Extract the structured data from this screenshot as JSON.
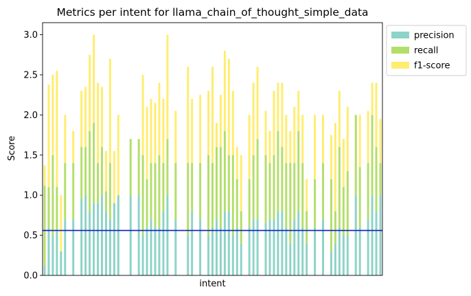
{
  "chart_data": {
    "type": "bar",
    "stacked": true,
    "title": "Metrics per intent for llama_chain_of_thought_simple_data",
    "xlabel": "intent",
    "ylabel": "Score",
    "ylim": [
      0,
      3.15
    ],
    "yticks": [
      0.0,
      0.5,
      1.0,
      1.5,
      2.0,
      2.5,
      3.0
    ],
    "ytick_labels": [
      "0.0",
      "0.5",
      "1.0",
      "1.5",
      "2.0",
      "2.5",
      "3.0"
    ],
    "legend_position": "outside-upper-right",
    "reference_line": {
      "value": 0.56,
      "color": "#0b1fbf"
    },
    "series": [
      {
        "name": "precision",
        "color": "#8dd3c7",
        "values": [
          0.12,
          0.6,
          0.5,
          0.55,
          0.3,
          0.7,
          0.0,
          0.7,
          0.0,
          0.95,
          1.0,
          0.8,
          0.9,
          0.9,
          1.0,
          0.8,
          0.7,
          0.9,
          1.0,
          0.0,
          0.0,
          1.0,
          0.0,
          1.0,
          0.5,
          0.6,
          0.7,
          0.6,
          0.6,
          0.8,
          1.0,
          0.0,
          0.7,
          0.0,
          0.0,
          0.5,
          0.8,
          0.0,
          0.7,
          0.0,
          0.5,
          0.6,
          0.7,
          0.6,
          0.8,
          0.8,
          0.5,
          0.6,
          0.4,
          0.0,
          0.6,
          0.7,
          0.7,
          0.0,
          0.65,
          0.7,
          0.7,
          0.8,
          0.8,
          0.6,
          0.4,
          0.7,
          0.8,
          0.6,
          0.4,
          0.0,
          0.6,
          0.0,
          0.7,
          0.0,
          0.3,
          0.4,
          0.6,
          0.5,
          0.5,
          0.0,
          1.0,
          0.6,
          0.0,
          0.7,
          1.0,
          0.8,
          1.0
        ]
      },
      {
        "name": "recall",
        "color": "#b3de69",
        "values": [
          1.0,
          0.5,
          1.0,
          0.55,
          0.0,
          0.7,
          0.0,
          0.7,
          0.0,
          0.65,
          0.6,
          1.0,
          1.0,
          0.5,
          0.6,
          0.25,
          0.7,
          0.0,
          0.0,
          0.0,
          0.0,
          0.7,
          0.0,
          0.7,
          1.0,
          0.6,
          0.7,
          0.8,
          0.9,
          0.6,
          0.7,
          0.0,
          0.7,
          0.0,
          0.0,
          0.9,
          0.6,
          0.0,
          0.7,
          0.0,
          1.0,
          0.8,
          0.9,
          1.0,
          1.0,
          0.7,
          1.0,
          0.6,
          0.4,
          0.0,
          0.6,
          0.8,
          1.0,
          0.0,
          0.85,
          0.7,
          0.8,
          1.0,
          0.8,
          0.8,
          1.0,
          0.7,
          1.0,
          0.8,
          0.4,
          0.0,
          0.6,
          0.0,
          0.7,
          0.0,
          0.9,
          0.4,
          1.0,
          0.6,
          0.8,
          0.0,
          1.0,
          0.75,
          0.0,
          0.7,
          1.0,
          0.8,
          0.4
        ]
      },
      {
        "name": "f1-score",
        "color": "#ffed6f",
        "values": [
          0.25,
          1.28,
          1.0,
          1.45,
          0.7,
          0.6,
          0.0,
          0.4,
          0.0,
          0.7,
          0.75,
          0.95,
          1.1,
          1.0,
          0.75,
          0.5,
          1.3,
          0.65,
          1.0,
          0.0,
          0.0,
          0.0,
          0.0,
          0.0,
          1.0,
          0.9,
          0.8,
          0.75,
          0.9,
          0.8,
          1.3,
          0.0,
          0.65,
          0.0,
          0.0,
          1.2,
          0.8,
          0.0,
          0.85,
          0.0,
          0.8,
          1.2,
          0.3,
          0.65,
          1.0,
          1.2,
          0.8,
          0.4,
          0.7,
          0.0,
          0.8,
          0.9,
          0.9,
          0.0,
          0.55,
          0.4,
          0.8,
          0.6,
          0.8,
          0.6,
          0.4,
          0.7,
          0.5,
          0.6,
          0.4,
          0.0,
          0.8,
          0.0,
          0.6,
          0.0,
          0.55,
          1.1,
          0.7,
          0.6,
          0.8,
          0.0,
          0.0,
          0.65,
          0.0,
          0.65,
          0.4,
          0.8,
          0.55
        ]
      }
    ]
  }
}
